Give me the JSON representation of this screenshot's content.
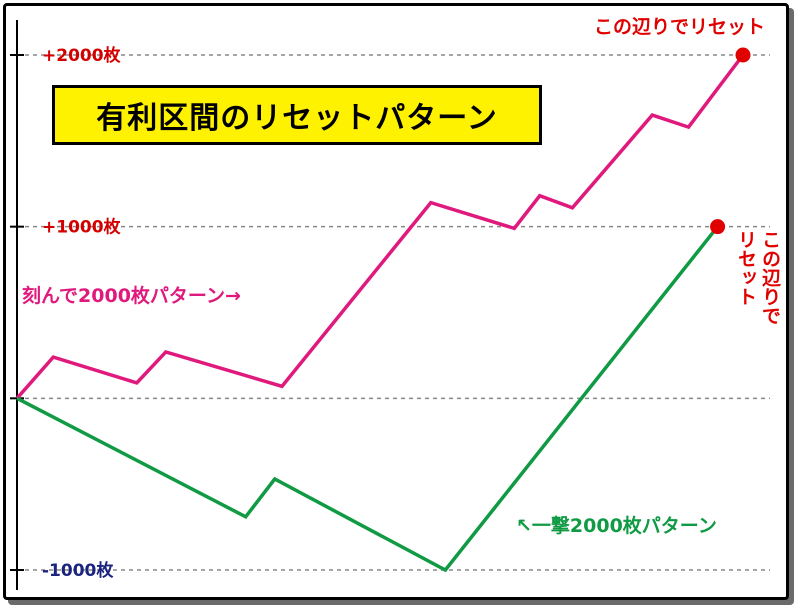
{
  "colors": {
    "series_pink": "#e0197d",
    "series_green": "#0f9a43",
    "marker": "#e00000",
    "tick_positive": "#d40000",
    "tick_negative": "#1a237e",
    "title_bg": "#fff200",
    "grid": "#888888"
  },
  "chart_data": {
    "type": "line",
    "title": "有利区間のリセットパターン",
    "y_unit": "枚",
    "ylim": [
      -1000,
      2000
    ],
    "y_ticks": [
      {
        "value": 2000,
        "label": "+2000枚"
      },
      {
        "value": 1000,
        "label": "+1000枚"
      },
      {
        "value": 0,
        "label": ""
      },
      {
        "value": -1000,
        "label": "-1000枚"
      }
    ],
    "grid": "dashed horizontal",
    "xlim": [
      0,
      100
    ],
    "series": [
      {
        "name": "刻んで2000枚パターン→",
        "color_key": "series_pink",
        "x": [
          0,
          5,
          16.5,
          20.5,
          36.5,
          57,
          68.5,
          72,
          76.5,
          87.5,
          92.5,
          100
        ],
        "y": [
          0,
          240,
          90,
          270,
          70,
          1140,
          990,
          1180,
          1110,
          1650,
          1580,
          2000
        ]
      },
      {
        "name": "↖一撃2000枚パターン",
        "color_key": "series_green",
        "x": [
          0,
          31.5,
          35.5,
          59,
          96.5
        ],
        "y": [
          0,
          -690,
          -470,
          -1000,
          1000
        ]
      }
    ],
    "annotations": [
      {
        "text": "この辺りでリセット",
        "marker_x": 100,
        "marker_y": 2000
      },
      {
        "text": "この辺りでリセット",
        "marker_x": 96.5,
        "marker_y": 1000
      }
    ]
  }
}
